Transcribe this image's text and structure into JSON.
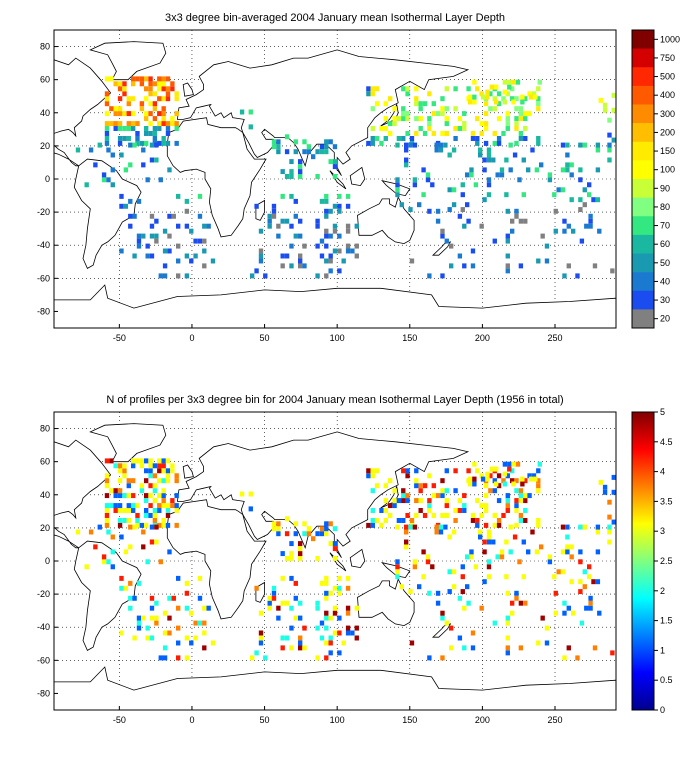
{
  "map1": {
    "title": "3x3 degree bin-averaged 2004 January mean Isothermal Layer Depth",
    "lon_ticks": [
      "-50",
      "0",
      "50",
      "100",
      "150",
      "200",
      "250"
    ],
    "lat_ticks": [
      "80",
      "60",
      "40",
      "20",
      "0",
      "-20",
      "-40",
      "-60",
      "-80"
    ],
    "colorbar": {
      "labels": [
        "1000",
        "750",
        "500",
        "400",
        "300",
        "200",
        "150",
        "100",
        "90",
        "80",
        "70",
        "60",
        "50",
        "40",
        "30",
        "20"
      ],
      "colors": [
        "#800000",
        "#d40000",
        "#ff2800",
        "#ff5a00",
        "#ff8c00",
        "#ffbe00",
        "#ffeb00",
        "#ffff00",
        "#c8ff36",
        "#80ff80",
        "#33e880",
        "#1ab8a0",
        "#1a9ab0",
        "#1a7ad0",
        "#1a4cf0",
        "#808080"
      ]
    }
  },
  "map2": {
    "title": "N of profiles per 3x3 degree bin for 2004 January mean Isothermal Layer Depth  (1956 in total)",
    "lon_ticks": [
      "-50",
      "0",
      "50",
      "100",
      "150",
      "200",
      "250"
    ],
    "lat_ticks": [
      "80",
      "60",
      "40",
      "20",
      "0",
      "-20",
      "-40",
      "-60",
      "-80"
    ],
    "colorbar": {
      "labels": [
        "5",
        "4.5",
        "4",
        "3.5",
        "3",
        "2.5",
        "2",
        "1.5",
        "1",
        "0.5",
        "0"
      ],
      "range": [
        0,
        5
      ]
    }
  }
}
